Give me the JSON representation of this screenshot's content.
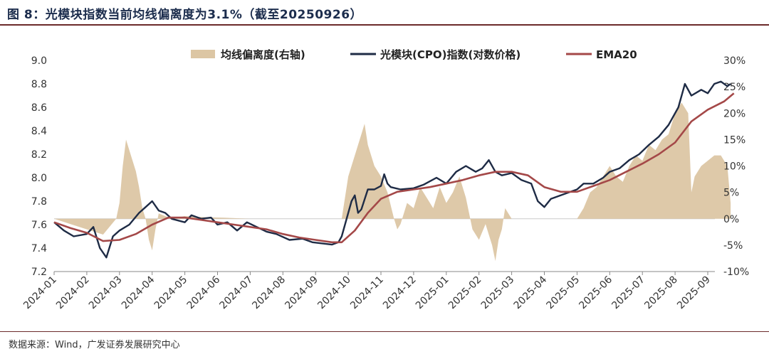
{
  "title": "图 8：光模块指数当前均线偏离度为3.1%（截至20250926）",
  "source": "数据来源：Wind，广发证券发展研究中心",
  "colors": {
    "bars": "#dcc6a4",
    "line": "#1e2b45",
    "ema": "#a44848",
    "axis": "#888888",
    "zero": "#cccccc"
  },
  "chart_data": {
    "type": "line+area",
    "x_ticks": [
      "2024-01",
      "2024-02",
      "2024-03",
      "2024-04",
      "2024-05",
      "2024-06",
      "2024-07",
      "2024-08",
      "2024-09",
      "2024-10",
      "2024-11",
      "2024-12",
      "2025-01",
      "2025-02",
      "2025-03",
      "2025-04",
      "2025-05",
      "2025-06",
      "2025-07",
      "2025-08",
      "2025-09"
    ],
    "y_left": {
      "min": 7.2,
      "max": 9.0,
      "ticks": [
        "7.2",
        "7.4",
        "7.6",
        "7.8",
        "8.0",
        "8.2",
        "8.4",
        "8.6",
        "8.8",
        "9.0"
      ]
    },
    "y_right": {
      "min": -10,
      "max": 30,
      "ticks": [
        "-10%",
        "-5%",
        "0%",
        "5%",
        "10%",
        "15%",
        "20%",
        "25%",
        "30%"
      ]
    },
    "legend": [
      "均线偏离度(右轴)",
      "光模块(CPO)指数(对数价格)",
      "EMA20"
    ],
    "legend_position": "top",
    "series": [
      {
        "name": "光模块(CPO)指数(对数价格)",
        "axis": "left",
        "points": [
          [
            0,
            7.62
          ],
          [
            0.3,
            7.55
          ],
          [
            0.6,
            7.5
          ],
          [
            1.0,
            7.52
          ],
          [
            1.2,
            7.58
          ],
          [
            1.4,
            7.4
          ],
          [
            1.6,
            7.32
          ],
          [
            1.8,
            7.5
          ],
          [
            2.0,
            7.55
          ],
          [
            2.3,
            7.6
          ],
          [
            2.6,
            7.7
          ],
          [
            2.8,
            7.75
          ],
          [
            3.0,
            7.8
          ],
          [
            3.2,
            7.72
          ],
          [
            3.4,
            7.7
          ],
          [
            3.6,
            7.65
          ],
          [
            4.0,
            7.62
          ],
          [
            4.2,
            7.68
          ],
          [
            4.5,
            7.65
          ],
          [
            4.8,
            7.66
          ],
          [
            5.0,
            7.6
          ],
          [
            5.3,
            7.62
          ],
          [
            5.6,
            7.55
          ],
          [
            5.9,
            7.62
          ],
          [
            6.2,
            7.58
          ],
          [
            6.5,
            7.54
          ],
          [
            6.8,
            7.52
          ],
          [
            7.2,
            7.47
          ],
          [
            7.6,
            7.48
          ],
          [
            7.9,
            7.45
          ],
          [
            8.2,
            7.44
          ],
          [
            8.5,
            7.43
          ],
          [
            8.7,
            7.45
          ],
          [
            8.8,
            7.5
          ],
          [
            9.0,
            7.7
          ],
          [
            9.1,
            7.8
          ],
          [
            9.2,
            7.85
          ],
          [
            9.3,
            7.7
          ],
          [
            9.4,
            7.73
          ],
          [
            9.6,
            7.9
          ],
          [
            9.8,
            7.9
          ],
          [
            10.0,
            7.93
          ],
          [
            10.1,
            8.03
          ],
          [
            10.2,
            7.95
          ],
          [
            10.3,
            7.92
          ],
          [
            10.6,
            7.9
          ],
          [
            11.0,
            7.91
          ],
          [
            11.3,
            7.94
          ],
          [
            11.7,
            8.0
          ],
          [
            12.0,
            7.95
          ],
          [
            12.3,
            8.05
          ],
          [
            12.6,
            8.1
          ],
          [
            12.9,
            8.05
          ],
          [
            13.1,
            8.08
          ],
          [
            13.3,
            8.15
          ],
          [
            13.5,
            8.05
          ],
          [
            13.7,
            8.02
          ],
          [
            14.0,
            8.04
          ],
          [
            14.3,
            7.98
          ],
          [
            14.6,
            7.95
          ],
          [
            14.8,
            7.8
          ],
          [
            15.0,
            7.75
          ],
          [
            15.2,
            7.82
          ],
          [
            15.5,
            7.85
          ],
          [
            15.8,
            7.88
          ],
          [
            16.0,
            7.9
          ],
          [
            16.2,
            7.95
          ],
          [
            16.5,
            7.95
          ],
          [
            16.8,
            8.0
          ],
          [
            17.0,
            8.05
          ],
          [
            17.3,
            8.08
          ],
          [
            17.6,
            8.15
          ],
          [
            17.9,
            8.2
          ],
          [
            18.2,
            8.28
          ],
          [
            18.5,
            8.35
          ],
          [
            18.8,
            8.45
          ],
          [
            19.1,
            8.6
          ],
          [
            19.3,
            8.8
          ],
          [
            19.5,
            8.7
          ],
          [
            19.8,
            8.75
          ],
          [
            20.0,
            8.72
          ],
          [
            20.2,
            8.8
          ],
          [
            20.4,
            8.82
          ],
          [
            20.6,
            8.78
          ],
          [
            20.7,
            8.8
          ]
        ]
      },
      {
        "name": "EMA20",
        "axis": "left",
        "points": [
          [
            0,
            7.62
          ],
          [
            0.5,
            7.57
          ],
          [
            1.0,
            7.53
          ],
          [
            1.5,
            7.46
          ],
          [
            2.0,
            7.47
          ],
          [
            2.5,
            7.52
          ],
          [
            3.0,
            7.6
          ],
          [
            3.5,
            7.66
          ],
          [
            4.0,
            7.66
          ],
          [
            4.5,
            7.64
          ],
          [
            5.0,
            7.62
          ],
          [
            5.5,
            7.6
          ],
          [
            6.0,
            7.58
          ],
          [
            6.5,
            7.56
          ],
          [
            7.0,
            7.52
          ],
          [
            7.5,
            7.49
          ],
          [
            8.0,
            7.47
          ],
          [
            8.5,
            7.45
          ],
          [
            8.8,
            7.45
          ],
          [
            9.2,
            7.55
          ],
          [
            9.6,
            7.7
          ],
          [
            10.0,
            7.82
          ],
          [
            10.5,
            7.88
          ],
          [
            11.0,
            7.9
          ],
          [
            11.5,
            7.92
          ],
          [
            12.0,
            7.95
          ],
          [
            12.5,
            7.98
          ],
          [
            13.0,
            8.02
          ],
          [
            13.5,
            8.05
          ],
          [
            14.0,
            8.05
          ],
          [
            14.5,
            8.02
          ],
          [
            15.0,
            7.92
          ],
          [
            15.5,
            7.88
          ],
          [
            16.0,
            7.88
          ],
          [
            16.5,
            7.93
          ],
          [
            17.0,
            7.98
          ],
          [
            17.5,
            8.05
          ],
          [
            18.0,
            8.12
          ],
          [
            18.5,
            8.2
          ],
          [
            19.0,
            8.3
          ],
          [
            19.5,
            8.48
          ],
          [
            20.0,
            8.58
          ],
          [
            20.5,
            8.65
          ],
          [
            20.8,
            8.72
          ]
        ]
      },
      {
        "name": "均线偏离度(右轴)",
        "axis": "right",
        "points": [
          [
            0,
            0
          ],
          [
            0.5,
            -1
          ],
          [
            1.0,
            -2
          ],
          [
            1.5,
            -3
          ],
          [
            1.9,
            0
          ],
          [
            2.0,
            3
          ],
          [
            2.1,
            10
          ],
          [
            2.2,
            15
          ],
          [
            2.3,
            13
          ],
          [
            2.4,
            11
          ],
          [
            2.5,
            9
          ],
          [
            2.6,
            6
          ],
          [
            2.7,
            2
          ],
          [
            2.8,
            0
          ],
          [
            2.9,
            -4
          ],
          [
            3.0,
            -6
          ],
          [
            3.1,
            -2
          ],
          [
            3.2,
            1
          ],
          [
            3.6,
            0
          ],
          [
            4.0,
            0.5
          ],
          [
            4.6,
            0.3
          ],
          [
            5.2,
            0.2
          ],
          [
            6.0,
            0
          ],
          [
            6.8,
            0
          ],
          [
            7.6,
            0
          ],
          [
            8.4,
            0
          ],
          [
            8.8,
            0
          ],
          [
            8.9,
            4
          ],
          [
            9.0,
            8
          ],
          [
            9.2,
            12
          ],
          [
            9.4,
            16
          ],
          [
            9.5,
            18
          ],
          [
            9.6,
            14
          ],
          [
            9.8,
            10
          ],
          [
            10.0,
            8
          ],
          [
            10.2,
            5
          ],
          [
            10.4,
            0
          ],
          [
            10.5,
            -2
          ],
          [
            10.6,
            -1
          ],
          [
            10.8,
            3
          ],
          [
            11.0,
            2
          ],
          [
            11.2,
            6
          ],
          [
            11.4,
            4
          ],
          [
            11.6,
            2
          ],
          [
            11.8,
            6
          ],
          [
            12.0,
            3
          ],
          [
            12.2,
            5
          ],
          [
            12.4,
            8
          ],
          [
            12.6,
            4
          ],
          [
            12.8,
            -2
          ],
          [
            13.0,
            -4
          ],
          [
            13.2,
            -1
          ],
          [
            13.4,
            -5
          ],
          [
            13.5,
            -8
          ],
          [
            13.6,
            -4
          ],
          [
            13.7,
            -2
          ],
          [
            13.8,
            2
          ],
          [
            14.0,
            0
          ],
          [
            14.4,
            0
          ],
          [
            14.8,
            0
          ],
          [
            15.0,
            0
          ],
          [
            15.2,
            0
          ],
          [
            15.6,
            0
          ],
          [
            16.0,
            0
          ],
          [
            16.2,
            2
          ],
          [
            16.4,
            5
          ],
          [
            16.6,
            6
          ],
          [
            16.8,
            8
          ],
          [
            17.0,
            10
          ],
          [
            17.2,
            8
          ],
          [
            17.4,
            7
          ],
          [
            17.6,
            10
          ],
          [
            17.8,
            12
          ],
          [
            18.0,
            11
          ],
          [
            18.2,
            14
          ],
          [
            18.4,
            13
          ],
          [
            18.6,
            15
          ],
          [
            18.8,
            16
          ],
          [
            19.0,
            20
          ],
          [
            19.2,
            22
          ],
          [
            19.4,
            20
          ],
          [
            19.5,
            5
          ],
          [
            19.6,
            8
          ],
          [
            19.8,
            10
          ],
          [
            20.0,
            11
          ],
          [
            20.2,
            12
          ],
          [
            20.4,
            12
          ],
          [
            20.6,
            10
          ],
          [
            20.7,
            3
          ]
        ]
      }
    ]
  }
}
